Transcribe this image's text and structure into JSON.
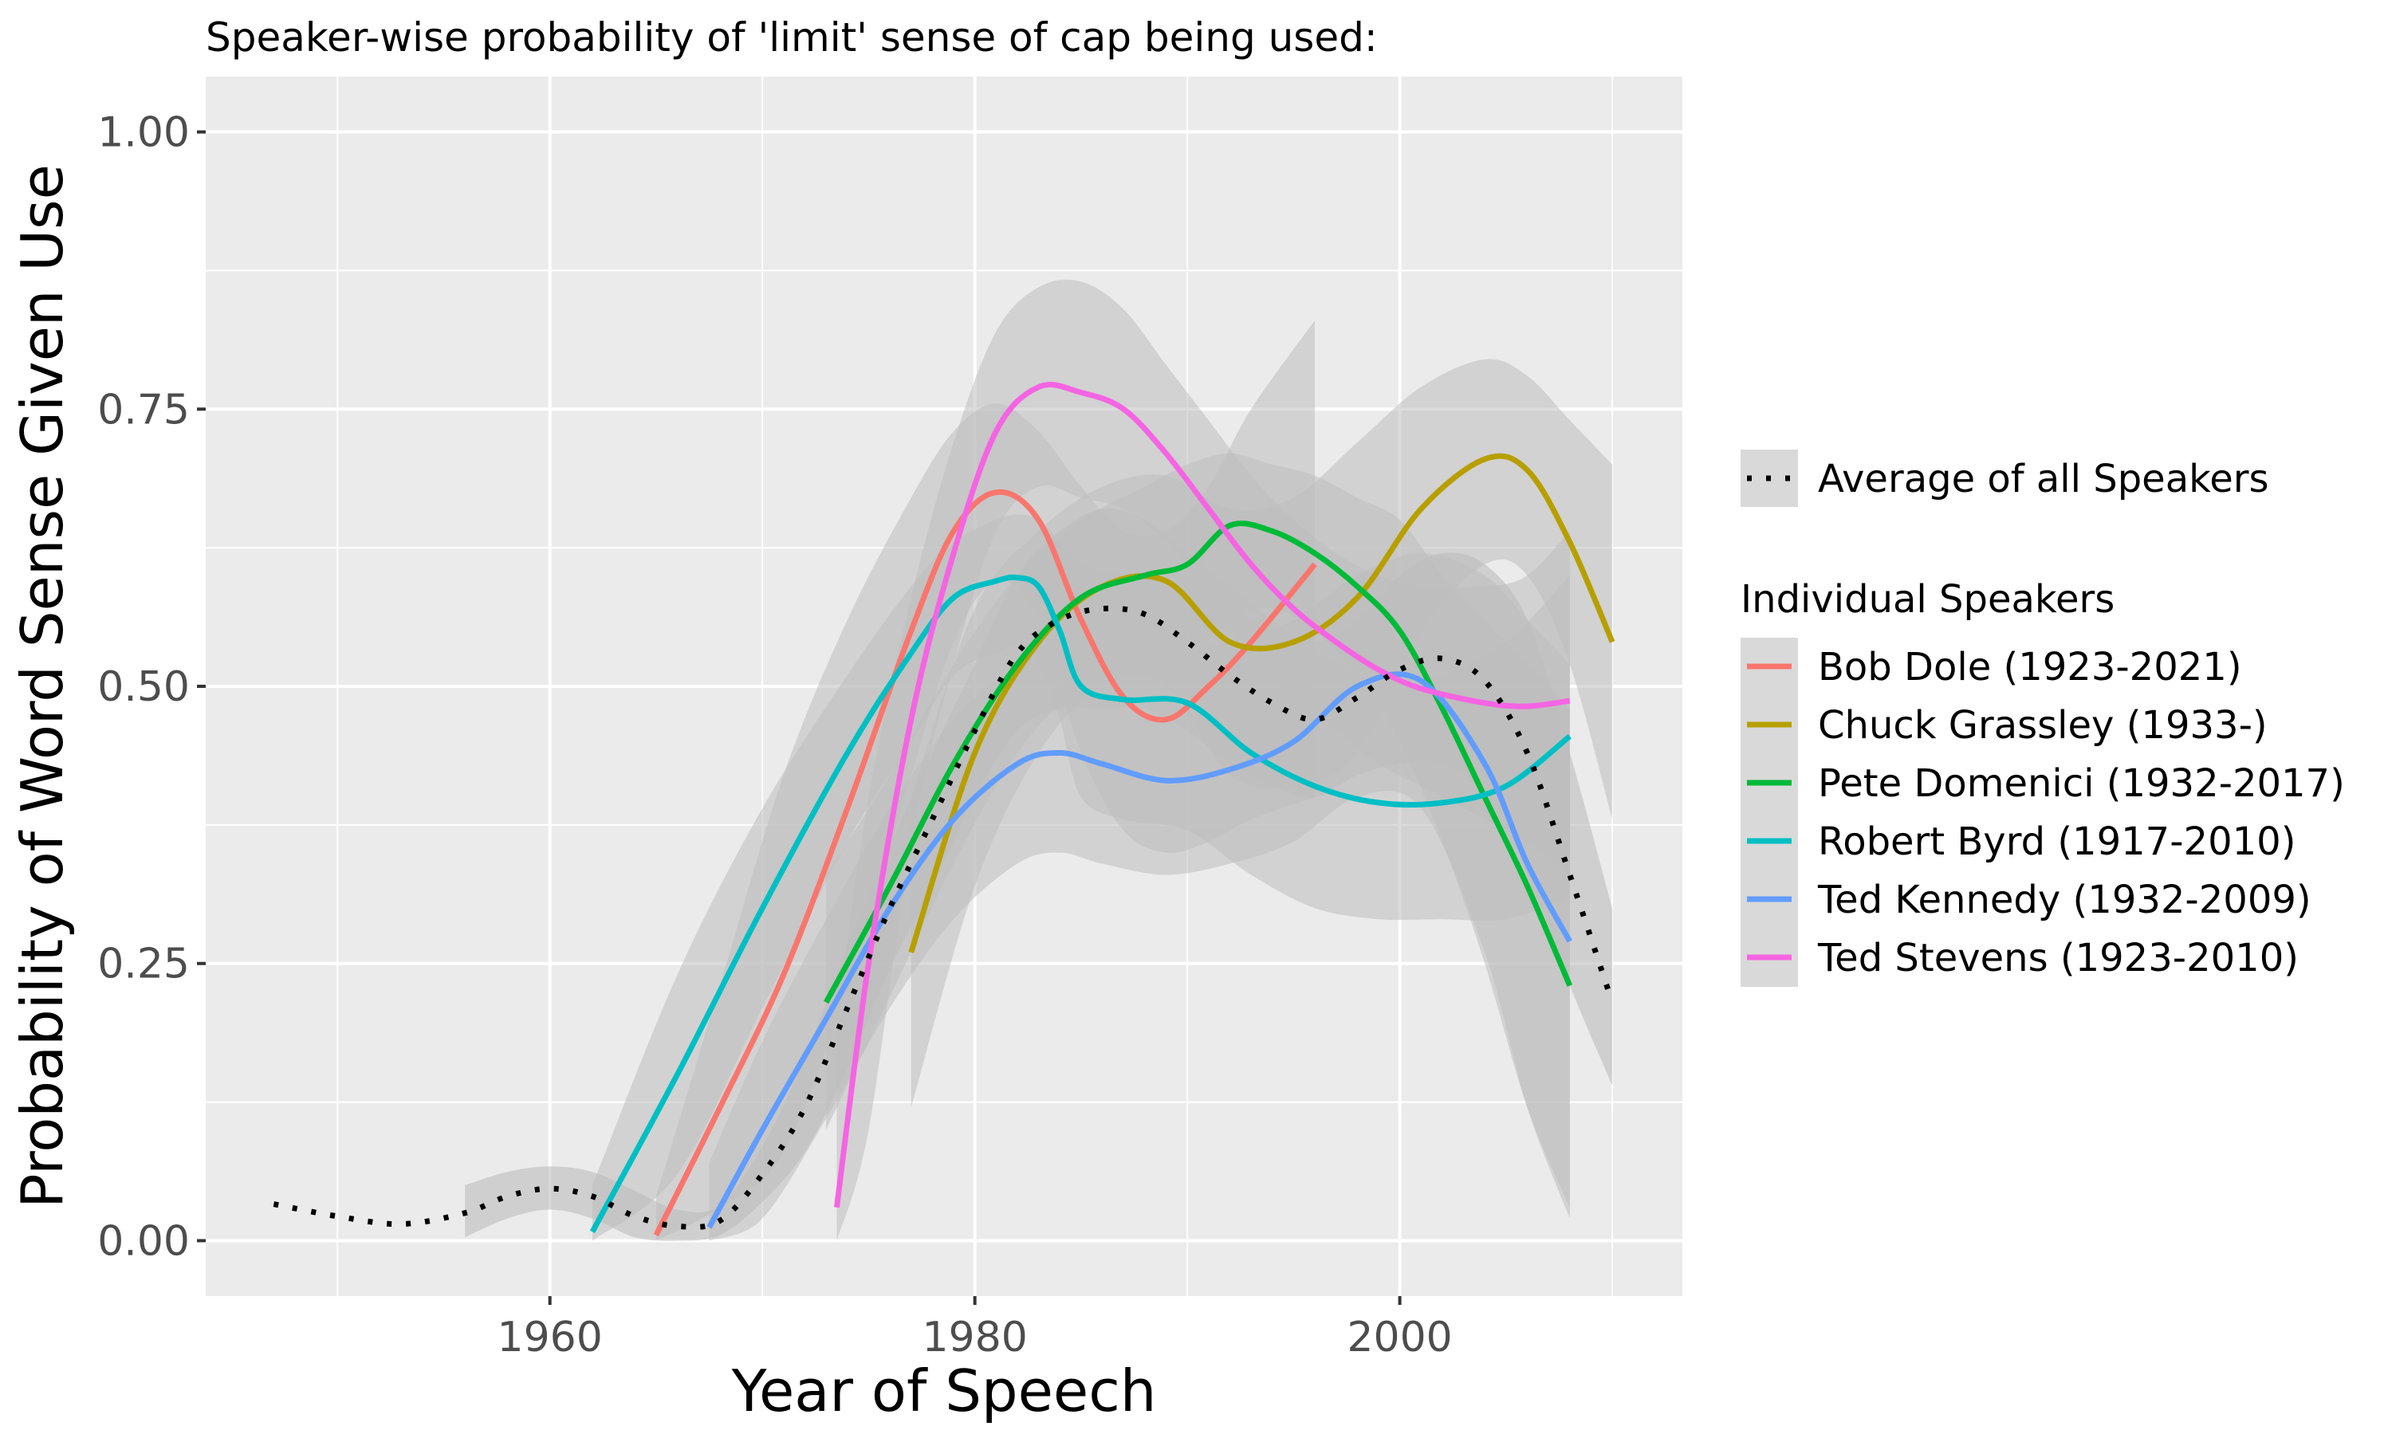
{
  "chart_data": {
    "type": "line",
    "title": "Speaker-wise probability of 'limit' sense of cap being used:",
    "xlabel": "Year of Speech",
    "ylabel": "Probability of Word Sense Given Use",
    "xlim": [
      1943.8,
      2013.3
    ],
    "ylim": [
      -0.05,
      1.05
    ],
    "x_ticks": [
      1960,
      1980,
      2000
    ],
    "x_tick_labels": [
      "1960",
      "1980",
      "2000"
    ],
    "y_ticks": [
      0,
      0.25,
      0.5,
      0.75,
      1
    ],
    "y_tick_labels": [
      "0.00",
      "0.25",
      "0.50",
      "0.75",
      "1.00"
    ],
    "grid": true,
    "panel_background": "#ebebeb",
    "ribbon_color": "#bdbdbd",
    "legend": {
      "placement": "right",
      "average_label": "Average of all Speakers",
      "individual_title": "Individual Speakers"
    },
    "average": {
      "name": "Average of all Speakers",
      "color": "#000000",
      "style": "dotted",
      "x": [
        1947,
        1950,
        1953,
        1956,
        1958,
        1960,
        1962,
        1964,
        1966,
        1968,
        1970,
        1972,
        1974,
        1976,
        1978,
        1980,
        1982,
        1984,
        1986,
        1988,
        1990,
        1992,
        1994,
        1996,
        1998,
        2000,
        2002,
        2004,
        2006,
        2008,
        2010
      ],
      "y": [
        0.033,
        0.022,
        0.015,
        0.025,
        0.04,
        0.047,
        0.04,
        0.022,
        0.013,
        0.018,
        0.06,
        0.12,
        0.21,
        0.3,
        0.38,
        0.46,
        0.53,
        0.56,
        0.57,
        0.565,
        0.54,
        0.51,
        0.485,
        0.47,
        0.49,
        0.515,
        0.525,
        0.505,
        0.44,
        0.33,
        0.215
      ],
      "ribbon_upper": [
        null,
        null,
        null,
        0.05,
        0.062,
        0.067,
        0.062,
        0.045,
        0.028,
        0.032,
        0.085,
        0.165,
        0.265,
        0.355,
        0.44,
        0.52,
        0.6,
        0.64,
        0.66,
        0.65,
        0.62,
        0.59,
        0.56,
        0.54,
        0.56,
        0.6,
        0.62,
        0.61,
        0.56,
        0.44,
        0.3
      ],
      "ribbon_lower": [
        null,
        null,
        null,
        0.003,
        0.02,
        0.028,
        0.02,
        0.003,
        0.0,
        0.005,
        0.035,
        0.08,
        0.155,
        0.245,
        0.32,
        0.4,
        0.46,
        0.48,
        0.48,
        0.48,
        0.46,
        0.43,
        0.41,
        0.4,
        0.42,
        0.43,
        0.43,
        0.4,
        0.33,
        0.23,
        0.14
      ],
      "ribbon_start_index": 3
    },
    "series": [
      {
        "name": "Bob Dole (1923-2021)",
        "color": "#f8766d",
        "x": [
          1965,
          1968,
          1971,
          1974,
          1977,
          1979,
          1981,
          1983,
          1985,
          1987,
          1989,
          1991,
          1993,
          1996
        ],
        "y": [
          0.005,
          0.12,
          0.24,
          0.39,
          0.55,
          0.64,
          0.675,
          0.65,
          0.56,
          0.49,
          0.47,
          0.5,
          0.54,
          0.61
        ],
        "upper": [
          0.04,
          0.23,
          0.42,
          0.56,
          0.67,
          0.73,
          0.755,
          0.73,
          0.68,
          0.64,
          0.64,
          0.68,
          0.75,
          0.83
        ],
        "lower": [
          0.0,
          0.03,
          0.08,
          0.23,
          0.42,
          0.54,
          0.595,
          0.56,
          0.44,
          0.37,
          0.35,
          0.36,
          0.38,
          0.4
        ]
      },
      {
        "name": "Chuck Grassley (1933-)",
        "color": "#b79f00",
        "x": [
          1977,
          1980,
          1983,
          1986,
          1989,
          1992,
          1995,
          1998,
          2001,
          2004,
          2006,
          2008,
          2010
        ],
        "y": [
          0.26,
          0.44,
          0.54,
          0.59,
          0.595,
          0.54,
          0.54,
          0.58,
          0.66,
          0.705,
          0.695,
          0.63,
          0.54
        ],
        "upper": [
          0.4,
          0.57,
          0.64,
          0.68,
          0.69,
          0.66,
          0.67,
          0.72,
          0.77,
          0.795,
          0.78,
          0.74,
          0.7
        ],
        "lower": [
          0.12,
          0.32,
          0.44,
          0.5,
          0.5,
          0.42,
          0.41,
          0.44,
          0.55,
          0.61,
          0.6,
          0.52,
          0.38
        ]
      },
      {
        "name": "Pete Domenici (1932-2017)",
        "color": "#00ba38",
        "x": [
          1973,
          1976,
          1979,
          1982,
          1985,
          1988,
          1990,
          1992,
          1994,
          1996,
          1998,
          2000,
          2002,
          2004,
          2006,
          2008
        ],
        "y": [
          0.215,
          0.32,
          0.43,
          0.52,
          0.58,
          0.6,
          0.61,
          0.645,
          0.64,
          0.62,
          0.59,
          0.55,
          0.48,
          0.4,
          0.32,
          0.23
        ],
        "upper": [
          0.33,
          0.42,
          0.52,
          0.6,
          0.65,
          0.68,
          0.7,
          0.71,
          0.7,
          0.69,
          0.67,
          0.65,
          0.6,
          0.56,
          0.52,
          0.48
        ],
        "lower": [
          0.1,
          0.22,
          0.34,
          0.44,
          0.5,
          0.52,
          0.53,
          0.56,
          0.57,
          0.55,
          0.51,
          0.45,
          0.36,
          0.25,
          0.12,
          0.03
        ]
      },
      {
        "name": "Robert Byrd (1917-2010)",
        "color": "#00bfc4",
        "x": [
          1962,
          1966,
          1970,
          1974,
          1977,
          1979,
          1981,
          1982,
          1983,
          1984,
          1985,
          1987,
          1990,
          1993,
          1996,
          1999,
          2002,
          2005,
          2008
        ],
        "y": [
          0.008,
          0.15,
          0.3,
          0.44,
          0.53,
          0.58,
          0.595,
          0.598,
          0.59,
          0.55,
          0.5,
          0.488,
          0.485,
          0.44,
          0.41,
          0.395,
          0.395,
          0.41,
          0.455
        ],
        "upper": [
          0.05,
          0.24,
          0.39,
          0.51,
          0.59,
          0.63,
          0.65,
          0.655,
          0.65,
          0.63,
          0.61,
          0.6,
          0.6,
          0.56,
          0.53,
          0.51,
          0.51,
          0.54,
          0.6
        ],
        "lower": [
          0.0,
          0.06,
          0.21,
          0.36,
          0.45,
          0.51,
          0.53,
          0.535,
          0.52,
          0.47,
          0.4,
          0.38,
          0.37,
          0.33,
          0.3,
          0.29,
          0.29,
          0.29,
          0.31
        ]
      },
      {
        "name": "Ted Kennedy (1932-2009)",
        "color": "#619cff",
        "x": [
          1967.5,
          1970,
          1973,
          1976,
          1979,
          1982,
          1984,
          1986,
          1989,
          1992,
          1995,
          1998,
          2001,
          2004,
          2006,
          2008
        ],
        "y": [
          0.012,
          0.1,
          0.2,
          0.3,
          0.38,
          0.43,
          0.44,
          0.43,
          0.415,
          0.425,
          0.45,
          0.5,
          0.505,
          0.43,
          0.34,
          0.27
        ],
        "upper": [
          0.07,
          0.18,
          0.29,
          0.39,
          0.47,
          0.52,
          0.54,
          0.54,
          0.53,
          0.54,
          0.56,
          0.6,
          0.62,
          0.6,
          0.56,
          0.52
        ],
        "lower": [
          0.0,
          0.02,
          0.11,
          0.21,
          0.29,
          0.34,
          0.35,
          0.34,
          0.33,
          0.34,
          0.36,
          0.4,
          0.39,
          0.26,
          0.12,
          0.02
        ]
      },
      {
        "name": "Ted Stevens (1923-2010)",
        "color": "#f564e3",
        "x": [
          1973.5,
          1975,
          1977,
          1979,
          1981,
          1983,
          1985,
          1987,
          1989,
          1991,
          1993,
          1995,
          1997,
          1999,
          2001,
          2004,
          2006,
          2008
        ],
        "y": [
          0.03,
          0.25,
          0.47,
          0.62,
          0.73,
          0.77,
          0.765,
          0.75,
          0.71,
          0.66,
          0.61,
          0.57,
          0.54,
          0.515,
          0.498,
          0.485,
          0.482,
          0.487
        ],
        "upper": [
          0.2,
          0.4,
          0.58,
          0.72,
          0.82,
          0.86,
          0.865,
          0.84,
          0.79,
          0.74,
          0.69,
          0.65,
          0.62,
          0.6,
          0.59,
          0.59,
          0.6,
          0.64
        ],
        "lower": [
          0.0,
          0.1,
          0.36,
          0.52,
          0.64,
          0.68,
          0.67,
          0.66,
          0.63,
          0.58,
          0.53,
          0.49,
          0.46,
          0.43,
          0.41,
          0.38,
          0.36,
          0.33
        ]
      }
    ]
  }
}
